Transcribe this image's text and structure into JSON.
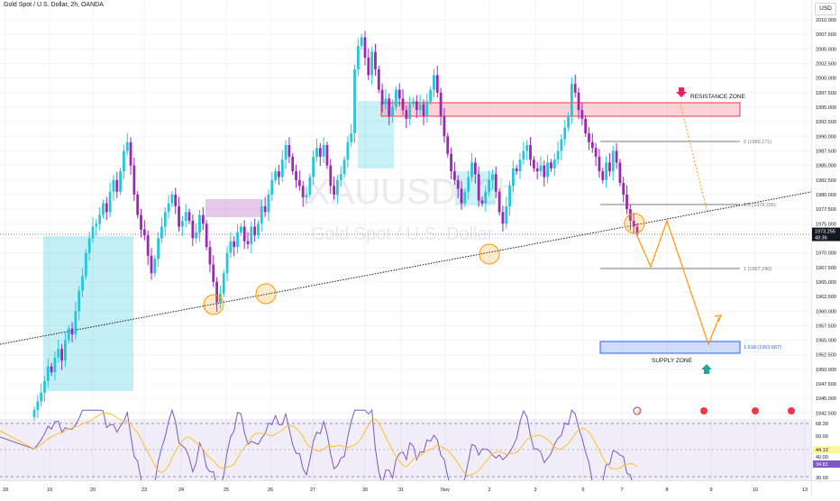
{
  "header": {
    "title": "Gold Spot / U.S. Dollar, 2h, OANDA"
  },
  "currency_button": "USD",
  "watermark": {
    "symbol": "XAUUSD, 2h",
    "name": "Gold Spot / U.S. Dollar"
  },
  "price_axis": {
    "min": 1940,
    "max": 2010,
    "labels": [
      "2010.000",
      "2007.500",
      "2005.000",
      "2002.500",
      "2000.000",
      "1997.500",
      "1995.000",
      "1992.500",
      "1990.000",
      "1987.500",
      "1985.000",
      "1982.500",
      "1980.000",
      "1977.500",
      "1975.000",
      "1972.500",
      "1970.000",
      "1967.500",
      "1965.000",
      "1962.500",
      "1960.000",
      "1957.500",
      "1955.000",
      "1952.500",
      "1950.000",
      "1947.500",
      "1945.000",
      "1942.500"
    ],
    "current_price": "1973.255",
    "current_countdown": "48:36"
  },
  "time_axis": {
    "labels": [
      "18",
      "19",
      "20",
      "23",
      "24",
      "25",
      "26",
      "27",
      "30",
      "31",
      "Nov",
      "2",
      "3",
      "6",
      "7",
      "8",
      "9",
      "10",
      "13"
    ]
  },
  "annotations": {
    "resistance_label": "RESISTANCE ZONE",
    "supply_label": "SUPPLY ZONE",
    "fib_0": "0 (1989.171)",
    "fib_05": "0.5 (1978.206)",
    "fib_1": "1 (1967.240)",
    "fib_1618": "1.618 (1953.687)"
  },
  "rsi": {
    "labels": [
      "68.39",
      "60.00",
      "44.12",
      "40.00",
      "34.81",
      "30.00"
    ],
    "rsi_value": "34.81",
    "ma_value": "44.12"
  },
  "colors": {
    "bull": "#26c6da",
    "bear": "#9c27b0",
    "resistance": "#f23645",
    "supply": "#2962ff",
    "projection": "#ff9800",
    "rsi_line": "#7e57c2",
    "rsi_ma": "#fbc02d",
    "price_tag": "#131722"
  },
  "chart_data": {
    "type": "candlestick",
    "title": "Gold Spot / U.S. Dollar, 2h, OANDA",
    "x_labels": [
      "18",
      "19",
      "20",
      "23",
      "24",
      "25",
      "26",
      "27",
      "30",
      "31",
      "Nov",
      "2",
      "3",
      "6",
      "7",
      "8",
      "9",
      "10",
      "13"
    ],
    "ylim": [
      1940,
      2010
    ],
    "zones": [
      {
        "name": "RESISTANCE ZONE",
        "from": 1993.5,
        "to": 1995.8
      },
      {
        "name": "SUPPLY ZONE",
        "from": 1953.0,
        "to": 1955.0
      }
    ],
    "fibonacci": [
      {
        "level": "0",
        "price": 1989.171
      },
      {
        "level": "0.5",
        "price": 1978.206
      },
      {
        "level": "1",
        "price": 1967.24
      },
      {
        "level": "1.618",
        "price": 1953.687
      }
    ],
    "closes": [
      1943.0,
      1944.5,
      1946.0,
      1948.0,
      1950.5,
      1949.5,
      1952.0,
      1953.5,
      1951.5,
      1955.0,
      1957.0,
      1956.0,
      1960.0,
      1963.5,
      1966.0,
      1970.0,
      1972.5,
      1974.5,
      1975.0,
      1976.5,
      1978.5,
      1977.0,
      1980.5,
      1982.5,
      1980.5,
      1984.0,
      1987.5,
      1989.0,
      1985.0,
      1980.0,
      1976.5,
      1974.0,
      1973.0,
      1969.5,
      1966.5,
      1969.0,
      1972.5,
      1974.5,
      1977.0,
      1978.5,
      1980.0,
      1978.0,
      1974.5,
      1975.5,
      1977.0,
      1975.5,
      1972.5,
      1973.5,
      1976.5,
      1975.0,
      1971.0,
      1968.0,
      1965.0,
      1961.5,
      1963.0,
      1966.5,
      1970.0,
      1972.0,
      1971.0,
      1973.5,
      1974.5,
      1972.0,
      1971.5,
      1974.5,
      1973.0,
      1975.0,
      1978.0,
      1977.0,
      1980.0,
      1982.5,
      1984.0,
      1983.0,
      1986.0,
      1988.5,
      1986.5,
      1984.0,
      1982.5,
      1981.5,
      1979.5,
      1980.0,
      1983.0,
      1986.5,
      1988.0,
      1986.5,
      1988.5,
      1985.0,
      1981.5,
      1980.0,
      1982.5,
      1983.5,
      1986.0,
      1989.0,
      1990.5,
      2001.5,
      2005.5,
      2007.0,
      2003.5,
      2000.5,
      2004.5,
      2001.5,
      1998.0,
      1995.5,
      1996.5,
      1993.5,
      1995.0,
      1998.0,
      1996.5,
      1994.5,
      1993.0,
      1995.5,
      1996.0,
      1994.5,
      1995.5,
      1993.5,
      1996.0,
      1998.0,
      2000.5,
      1997.5,
      1993.5,
      1990.0,
      1987.0,
      1984.0,
      1982.5,
      1981.0,
      1978.5,
      1980.5,
      1983.0,
      1985.5,
      1983.5,
      1979.0,
      1978.5,
      1980.5,
      1982.5,
      1983.5,
      1980.5,
      1977.0,
      1975.0,
      1978.0,
      1981.5,
      1984.5,
      1984.0,
      1986.0,
      1987.5,
      1988.5,
      1986.0,
      1984.5,
      1984.0,
      1985.0,
      1983.0,
      1985.5,
      1984.5,
      1986.0,
      1987.5,
      1989.5,
      1991.5,
      1993.5,
      1999.0,
      1997.5,
      1994.5,
      1993.0,
      1990.5,
      1989.0,
      1988.0,
      1986.5,
      1984.0,
      1982.5,
      1985.5,
      1984.0,
      1987.5,
      1985.5,
      1982.0,
      1980.0,
      1977.5,
      1975.5,
      1974.5,
      1973.3
    ]
  }
}
